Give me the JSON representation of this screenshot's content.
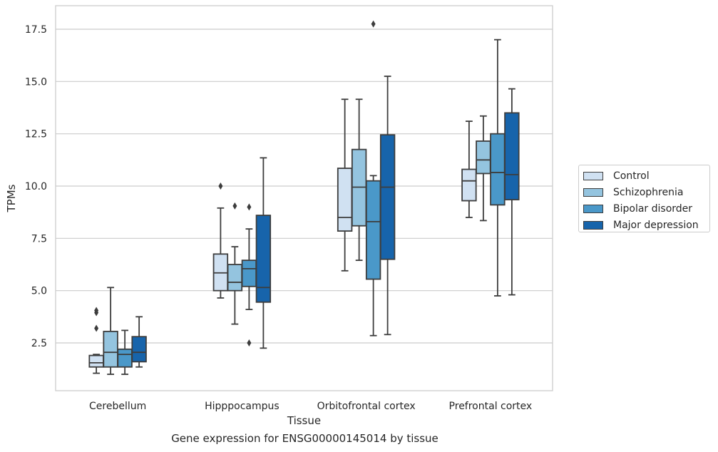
{
  "caption": "Gene expression for ENSG00000145014 by tissue",
  "chart_data": {
    "type": "box",
    "title": "",
    "xlabel": "Tissue",
    "ylabel": "TPMs",
    "ylim": [
      0.3,
      18.4
    ],
    "yticks": [
      2.5,
      5.0,
      7.5,
      10.0,
      12.5,
      15.0,
      17.5
    ],
    "ytick_labels": [
      "2.5",
      "5.0",
      "7.5",
      "10.0",
      "12.5",
      "15.0",
      "17.5"
    ],
    "grid": "horizontal",
    "legend_position": "right",
    "categories": [
      "Cerebellum",
      "Hipppocampus",
      "Orbitofrontal cortex",
      "Prefrontal cortex"
    ],
    "series": [
      {
        "name": "Control",
        "color": "#d0e1f2",
        "boxes": [
          {
            "whislo": 1.05,
            "q1": 1.35,
            "med": 1.55,
            "q3": 1.9,
            "whishi": 1.95,
            "fliers": [
              3.2,
              3.95,
              4.05
            ]
          },
          {
            "whislo": 4.65,
            "q1": 5.0,
            "med": 5.85,
            "q3": 6.75,
            "whishi": 8.95,
            "fliers": [
              10.0
            ]
          },
          {
            "whislo": 5.95,
            "q1": 7.85,
            "med": 8.5,
            "q3": 10.85,
            "whishi": 14.15,
            "fliers": []
          },
          {
            "whislo": 8.5,
            "q1": 9.3,
            "med": 10.25,
            "q3": 10.8,
            "whishi": 13.1,
            "fliers": []
          }
        ]
      },
      {
        "name": "Schizophrenia",
        "color": "#94c4df",
        "boxes": [
          {
            "whislo": 1.0,
            "q1": 1.35,
            "med": 2.05,
            "q3": 3.05,
            "whishi": 5.15,
            "fliers": []
          },
          {
            "whislo": 3.4,
            "q1": 5.0,
            "med": 5.4,
            "q3": 6.25,
            "whishi": 7.1,
            "fliers": [
              9.05
            ]
          },
          {
            "whislo": 6.45,
            "q1": 8.1,
            "med": 9.95,
            "q3": 11.75,
            "whishi": 14.15,
            "fliers": []
          },
          {
            "whislo": 8.35,
            "q1": 10.6,
            "med": 11.25,
            "q3": 12.15,
            "whishi": 13.35,
            "fliers": []
          }
        ]
      },
      {
        "name": "Bipolar disorder",
        "color": "#4a98c9",
        "boxes": [
          {
            "whislo": 1.0,
            "q1": 1.35,
            "med": 1.95,
            "q3": 2.2,
            "whishi": 3.1,
            "fliers": []
          },
          {
            "whislo": 4.1,
            "q1": 5.2,
            "med": 6.05,
            "q3": 6.45,
            "whishi": 7.95,
            "fliers": [
              2.5,
              9.0
            ]
          },
          {
            "whislo": 2.85,
            "q1": 5.55,
            "med": 8.3,
            "q3": 10.25,
            "whishi": 10.5,
            "fliers": [
              17.75
            ]
          },
          {
            "whislo": 4.75,
            "q1": 9.1,
            "med": 10.65,
            "q3": 12.5,
            "whishi": 17.0,
            "fliers": []
          }
        ]
      },
      {
        "name": "Major depression",
        "color": "#1764ab",
        "boxes": [
          {
            "whislo": 1.35,
            "q1": 1.6,
            "med": 2.05,
            "q3": 2.8,
            "whishi": 3.75,
            "fliers": []
          },
          {
            "whislo": 2.25,
            "q1": 4.45,
            "med": 5.15,
            "q3": 8.6,
            "whishi": 11.35,
            "fliers": []
          },
          {
            "whislo": 2.9,
            "q1": 6.5,
            "med": 9.95,
            "q3": 12.45,
            "whishi": 15.25,
            "fliers": []
          },
          {
            "whislo": 4.8,
            "q1": 9.35,
            "med": 10.55,
            "q3": 13.5,
            "whishi": 14.65,
            "fliers": []
          }
        ]
      }
    ]
  }
}
